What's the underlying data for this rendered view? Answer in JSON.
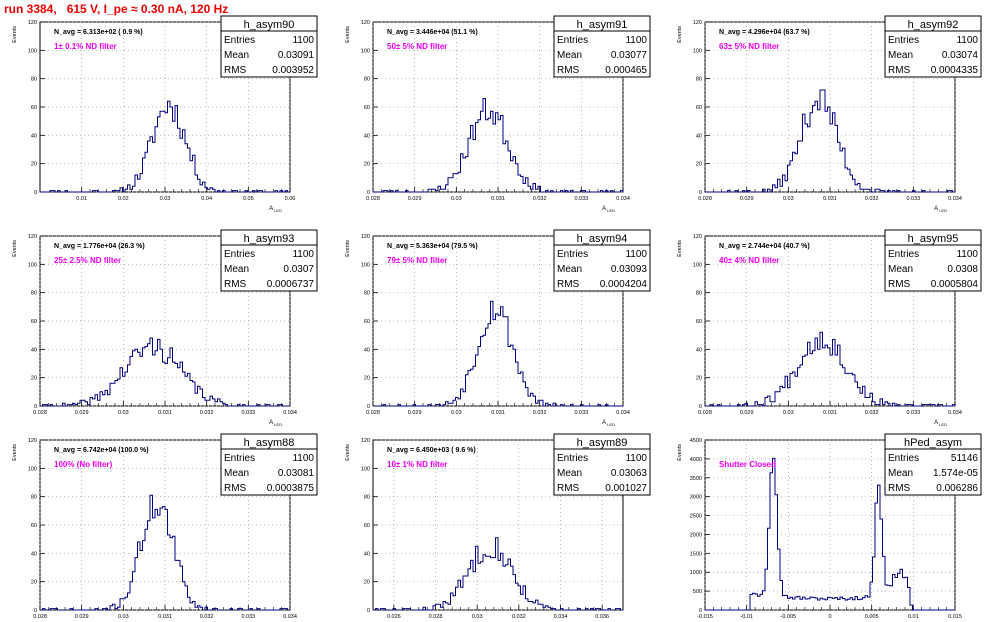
{
  "header": {
    "title": "run 3384,   615 V, I_pe ≈ 0.30 nA, 120 Hz"
  },
  "chart_data": [
    {
      "type": "histogram",
      "name": "h_asym90",
      "stats": {
        "entries": "1100",
        "mean": "0.03091",
        "rms": "0.003952"
      },
      "annotation": "N_avg = 6.313e+02 ( 0.9 %)",
      "filter_label": "1± 0.1% ND filter",
      "ylabel": "Events",
      "xlabel": "A",
      "xlim": [
        0.0,
        0.06
      ],
      "ylim": [
        0,
        120
      ],
      "xticks": [
        0.01,
        0.02,
        0.03,
        0.04,
        0.05,
        0.06
      ],
      "xtick_labels": [
        "0.01",
        "0.02",
        "0.03",
        "0.04",
        "0.05",
        "0.06"
      ],
      "yticks": [
        0,
        20,
        40,
        60,
        80,
        100,
        120
      ],
      "mean": 0.03091,
      "sigma": 0.003952,
      "peak": 62,
      "bins": 100,
      "seed": 11
    },
    {
      "type": "histogram",
      "name": "h_asym91",
      "stats": {
        "entries": "1100",
        "mean": "0.03077",
        "rms": "0.000465"
      },
      "annotation": "N_avg = 3.446e+04 (51.1 %)",
      "filter_label": "50± 5% ND filter",
      "ylabel": "Events",
      "xlabel": "A",
      "xlim": [
        0.028,
        0.034
      ],
      "ylim": [
        0,
        120
      ],
      "xticks": [
        0.028,
        0.029,
        0.03,
        0.031,
        0.032,
        0.033,
        0.034
      ],
      "xtick_labels": [
        "0.028",
        "0.029",
        "0.03",
        "0.031",
        "0.032",
        "0.033",
        "0.034"
      ],
      "yticks": [
        0,
        20,
        40,
        60,
        80,
        100,
        120
      ],
      "mean": 0.03077,
      "sigma": 0.000465,
      "peak": 58,
      "bins": 100,
      "seed": 23
    },
    {
      "type": "histogram",
      "name": "h_asym92",
      "stats": {
        "entries": "1100",
        "mean": "0.03074",
        "rms": "0.0004335"
      },
      "annotation": "N_avg = 4.296e+04 (63.7 %)",
      "filter_label": "63± 5% ND filter",
      "ylabel": "Events",
      "xlabel": "A",
      "xlim": [
        0.028,
        0.034
      ],
      "ylim": [
        0,
        120
      ],
      "xticks": [
        0.028,
        0.029,
        0.03,
        0.031,
        0.032,
        0.033,
        0.034
      ],
      "xtick_labels": [
        "0.028",
        "0.029",
        "0.03",
        "0.031",
        "0.032",
        "0.033",
        "0.034"
      ],
      "yticks": [
        0,
        20,
        40,
        60,
        80,
        100,
        120
      ],
      "mean": 0.03074,
      "sigma": 0.0004335,
      "peak": 66,
      "bins": 100,
      "seed": 37
    },
    {
      "type": "histogram",
      "name": "h_asym93",
      "stats": {
        "entries": "1100",
        "mean": "0.0307",
        "rms": "0.0006737"
      },
      "annotation": "N_avg = 1.776e+04 (26.3 %)",
      "filter_label": "25± 2.5% ND filter",
      "ylabel": "Events",
      "xlabel": "A",
      "xlim": [
        0.028,
        0.034
      ],
      "ylim": [
        0,
        120
      ],
      "xticks": [
        0.028,
        0.029,
        0.03,
        0.031,
        0.032,
        0.033,
        0.034
      ],
      "xtick_labels": [
        "0.028",
        "0.029",
        "0.03",
        "0.031",
        "0.032",
        "0.033",
        "0.034"
      ],
      "yticks": [
        0,
        20,
        40,
        60,
        80,
        100,
        120
      ],
      "mean": 0.0307,
      "sigma": 0.0006737,
      "peak": 42,
      "bins": 100,
      "seed": 41
    },
    {
      "type": "histogram",
      "name": "h_asym94",
      "stats": {
        "entries": "1100",
        "mean": "0.03093",
        "rms": "0.0004204"
      },
      "annotation": "N_avg = 5.363e+04 (79.5 %)",
      "filter_label": "79± 5% ND filter",
      "ylabel": "Events",
      "xlabel": "A",
      "xlim": [
        0.028,
        0.034
      ],
      "ylim": [
        0,
        120
      ],
      "xticks": [
        0.028,
        0.029,
        0.03,
        0.031,
        0.032,
        0.033,
        0.034
      ],
      "xtick_labels": [
        "0.028",
        "0.029",
        "0.03",
        "0.031",
        "0.032",
        "0.033",
        "0.034"
      ],
      "yticks": [
        0,
        20,
        40,
        60,
        80,
        100,
        120
      ],
      "mean": 0.03093,
      "sigma": 0.0004204,
      "peak": 70,
      "bins": 100,
      "seed": 53
    },
    {
      "type": "histogram",
      "name": "h_asym95",
      "stats": {
        "entries": "1100",
        "mean": "0.0308",
        "rms": "0.0005804"
      },
      "annotation": "N_avg = 2.744e+04 (40.7 %)",
      "filter_label": "40± 4% ND filter",
      "ylabel": "Events",
      "xlabel": "A",
      "xlim": [
        0.028,
        0.034
      ],
      "ylim": [
        0,
        120
      ],
      "xticks": [
        0.028,
        0.029,
        0.03,
        0.031,
        0.032,
        0.033,
        0.034
      ],
      "xtick_labels": [
        "0.028",
        "0.029",
        "0.03",
        "0.031",
        "0.032",
        "0.033",
        "0.034"
      ],
      "yticks": [
        0,
        20,
        40,
        60,
        80,
        100,
        120
      ],
      "mean": 0.0308,
      "sigma": 0.0005804,
      "peak": 48,
      "bins": 100,
      "seed": 67
    },
    {
      "type": "histogram",
      "name": "h_asym88",
      "stats": {
        "entries": "1100",
        "mean": "0.03081",
        "rms": "0.0003875"
      },
      "annotation": "N_avg = 6.742e+04 (100.0 %)",
      "filter_label": "100% (No filter)",
      "ylabel": "Events",
      "xlabel": "A",
      "xlim": [
        0.028,
        0.034
      ],
      "ylim": [
        0,
        120
      ],
      "xticks": [
        0.028,
        0.029,
        0.03,
        0.031,
        0.032,
        0.033,
        0.034
      ],
      "xtick_labels": [
        "0.028",
        "0.029",
        "0.03",
        "0.031",
        "0.032",
        "0.033",
        "0.034"
      ],
      "yticks": [
        0,
        20,
        40,
        60,
        80,
        100,
        120
      ],
      "mean": 0.03081,
      "sigma": 0.0003875,
      "peak": 76,
      "bins": 100,
      "seed": 71
    },
    {
      "type": "histogram",
      "name": "h_asym89",
      "stats": {
        "entries": "1100",
        "mean": "0.03063",
        "rms": "0.001027"
      },
      "annotation": "N_avg = 6.450e+03 ( 9.6 %)",
      "filter_label": "10± 1% ND filter",
      "ylabel": "Events",
      "xlabel": "A",
      "xlim": [
        0.025,
        0.037
      ],
      "ylim": [
        0,
        120
      ],
      "xticks": [
        0.026,
        0.028,
        0.03,
        0.032,
        0.034,
        0.036
      ],
      "xtick_labels": [
        "0.026",
        "0.028",
        "0.03",
        "0.032",
        "0.034",
        "0.036"
      ],
      "yticks": [
        0,
        20,
        40,
        60,
        80,
        100,
        120
      ],
      "mean": 0.03063,
      "sigma": 0.001027,
      "peak": 46,
      "bins": 100,
      "seed": 83
    },
    {
      "type": "histogram",
      "name": "hPed_asym",
      "stats": {
        "entries": "51146",
        "mean": "1.574e-05",
        "rms": "0.006286"
      },
      "annotation": "",
      "filter_label": "Shutter Closed",
      "ylabel": "Events",
      "xlabel": "",
      "xlim": [
        -0.015,
        0.015
      ],
      "ylim": [
        0,
        4500
      ],
      "xticks": [
        -0.015,
        -0.01,
        -0.005,
        0,
        0.005,
        0.01,
        0.015
      ],
      "xtick_labels": [
        "-0.015",
        "-0.01",
        "-0.005",
        "0",
        "0.005",
        "0.01",
        "0.015"
      ],
      "yticks": [
        0,
        500,
        1000,
        1500,
        2000,
        2500,
        3000,
        3500,
        4000,
        4500
      ],
      "peaks": [
        -0.0068,
        0.0058
      ],
      "peak_heights": [
        4350,
        3300
      ],
      "floor": 300,
      "bins": 100,
      "seed": 97
    }
  ]
}
